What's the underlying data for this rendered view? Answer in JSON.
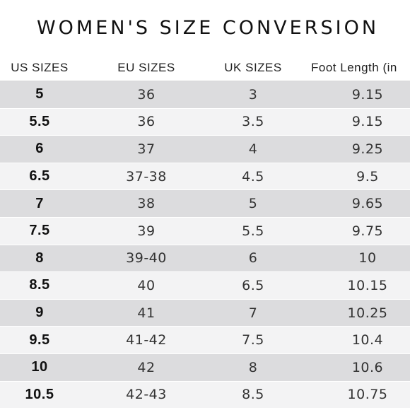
{
  "title": "WOMEN'S SIZE CONVERSION",
  "headers": {
    "us": "US SIZES",
    "eu": "EU SIZES",
    "uk": "UK SIZES",
    "foot": "Foot Length (in"
  },
  "rows": [
    {
      "us": "5",
      "eu": "36",
      "uk": "3",
      "foot": "9.15"
    },
    {
      "us": "5.5",
      "eu": "36",
      "uk": "3.5",
      "foot": "9.15"
    },
    {
      "us": "6",
      "eu": "37",
      "uk": "4",
      "foot": "9.25"
    },
    {
      "us": "6.5",
      "eu": "37-38",
      "uk": "4.5",
      "foot": "9.5"
    },
    {
      "us": "7",
      "eu": "38",
      "uk": "5",
      "foot": "9.65"
    },
    {
      "us": "7.5",
      "eu": "39",
      "uk": "5.5",
      "foot": "9.75"
    },
    {
      "us": "8",
      "eu": "39-40",
      "uk": "6",
      "foot": "10"
    },
    {
      "us": "8.5",
      "eu": "40",
      "uk": "6.5",
      "foot": "10.15"
    },
    {
      "us": "9",
      "eu": "41",
      "uk": "7",
      "foot": "10.25"
    },
    {
      "us": "9.5",
      "eu": "41-42",
      "uk": "7.5",
      "foot": "10.4"
    },
    {
      "us": "10",
      "eu": "42",
      "uk": "8",
      "foot": "10.6"
    },
    {
      "us": "10.5",
      "eu": "42-43",
      "uk": "8.5",
      "foot": "10.75"
    }
  ],
  "colors": {
    "row_shaded": "#dcdcde",
    "row_plain": "#f3f3f4",
    "text": "#222222"
  }
}
